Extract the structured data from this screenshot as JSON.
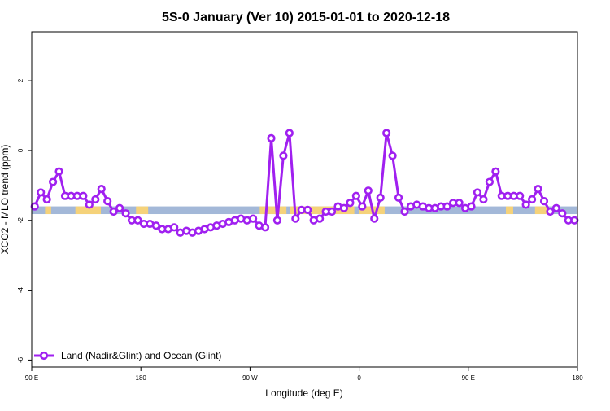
{
  "chart_data": {
    "type": "line",
    "title": "5S-0 January (Ver 10)   2015-01-01 to 2020-12-18",
    "xlabel": "Longitude (deg E)",
    "ylabel": "XCO2 - MLO trend (ppm)",
    "xlim": [
      90,
      540
    ],
    "ylim": [
      -6.2,
      3.4
    ],
    "x_ticks": [
      {
        "value": 90,
        "label": "90 E"
      },
      {
        "value": 180,
        "label": "180"
      },
      {
        "value": 270,
        "label": "90 W"
      },
      {
        "value": 360,
        "label": "0"
      },
      {
        "value": 450,
        "label": "90 E"
      },
      {
        "value": 540,
        "label": "180"
      }
    ],
    "y_ticks": [
      {
        "value": 2,
        "label": "2"
      },
      {
        "value": 0,
        "label": "0"
      },
      {
        "value": -2,
        "label": "-2"
      },
      {
        "value": -4,
        "label": "-4"
      },
      {
        "value": -6,
        "label": "-6"
      }
    ],
    "grid": false,
    "legend_position": "bottom-left",
    "colors": {
      "series": "#a020f0",
      "ocean": "#a3b8d8",
      "land": "#f5d27a"
    },
    "land_ocean_band": {
      "y_range": [
        -1.82,
        -1.6
      ],
      "land_segments": [
        [
          101,
          106
        ],
        [
          126,
          147
        ],
        [
          176,
          186
        ],
        [
          278,
          300
        ],
        [
          303,
          317
        ],
        [
          318,
          356
        ],
        [
          360,
          381
        ],
        [
          481,
          487
        ],
        [
          505,
          515
        ]
      ]
    },
    "series": [
      {
        "name": "Land (Nadir&Glint) and Ocean (Glint)",
        "marker": "open-circle",
        "x": [
          92.5,
          97.5,
          102.5,
          107.5,
          112.5,
          117.5,
          122.5,
          127.5,
          132.5,
          137.5,
          142.5,
          147.5,
          152.5,
          157.5,
          162.5,
          167.5,
          172.5,
          177.5,
          182.5,
          187.5,
          192.5,
          197.5,
          202.5,
          207.5,
          212.5,
          217.5,
          222.5,
          227.5,
          232.5,
          237.5,
          242.5,
          247.5,
          252.5,
          257.5,
          262.5,
          267.5,
          272.5,
          277.5,
          282.5,
          287.5,
          292.5,
          297.5,
          302.5,
          307.5,
          312.5,
          317.5,
          322.5,
          327.5,
          332.5,
          337.5,
          342.5,
          347.5,
          352.5,
          357.5,
          362.5,
          367.5,
          372.5,
          377.5,
          382.5,
          387.5,
          392.5,
          397.5,
          402.5,
          407.5,
          412.5,
          417.5,
          422.5,
          427.5,
          432.5,
          437.5,
          442.5,
          447.5,
          452.5,
          457.5,
          462.5,
          467.5,
          472.5,
          477.5,
          482.5,
          487.5,
          492.5,
          497.5,
          502.5,
          507.5,
          512.5,
          517.5,
          522.5,
          527.5,
          532.5,
          537.5
        ],
        "values": [
          -1.6,
          -1.2,
          -1.4,
          -0.9,
          -0.6,
          -1.3,
          -1.3,
          -1.3,
          -1.3,
          -1.55,
          -1.4,
          -1.1,
          -1.45,
          -1.75,
          -1.65,
          -1.8,
          -2.0,
          -2.0,
          -2.1,
          -2.1,
          -2.15,
          -2.25,
          -2.25,
          -2.2,
          -2.35,
          -2.3,
          -2.35,
          -2.3,
          -2.25,
          -2.2,
          -2.15,
          -2.1,
          -2.05,
          -2.0,
          -1.95,
          -2.0,
          -1.95,
          -2.15,
          -2.2,
          0.35,
          -2.0,
          -0.15,
          0.5,
          -1.95,
          -1.7,
          -1.7,
          -2.0,
          -1.95,
          -1.75,
          -1.75,
          -1.6,
          -1.65,
          -1.5,
          -1.3,
          -1.6,
          -1.15,
          -1.95,
          -1.35,
          0.5,
          -0.15,
          -1.35,
          -1.75,
          -1.6,
          -1.55,
          -1.6,
          -1.65,
          -1.65,
          -1.6,
          -1.6,
          -1.5,
          -1.5,
          -1.65,
          -1.6,
          -1.2,
          -1.4,
          -0.9,
          -0.6,
          -1.3,
          -1.3,
          -1.3,
          -1.3,
          -1.55,
          -1.4,
          -1.1,
          -1.45,
          -1.75,
          -1.65,
          -1.8,
          -2.0,
          -2.0
        ]
      }
    ]
  }
}
